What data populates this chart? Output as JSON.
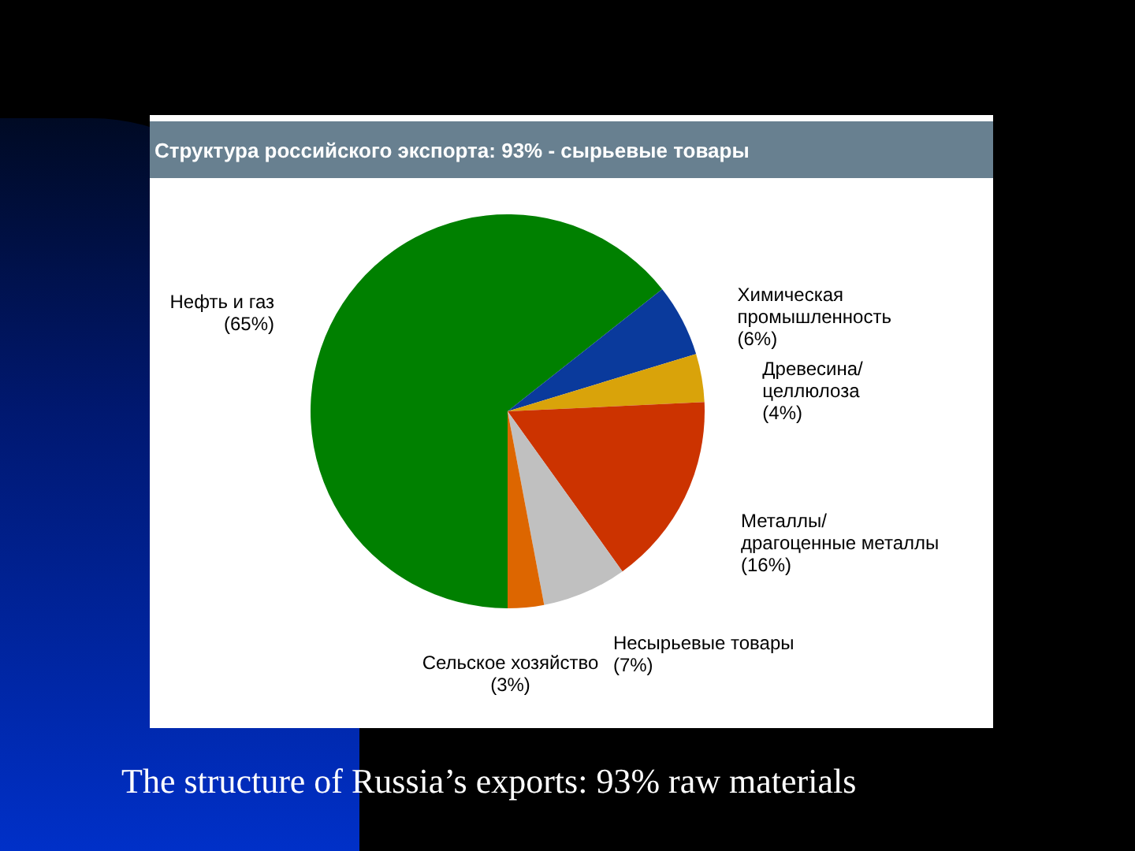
{
  "chart_data": {
    "type": "pie",
    "title": "Структура российского экспорта: 93% - сырьевые товары",
    "categories": [
      "Нефть и газ",
      "Химическая промышленность",
      "Древесина/ целлюлоза",
      "Металлы/ драгоценные металлы",
      "Несырьевые товары",
      "Сельское хозяйство"
    ],
    "values": [
      65,
      6,
      4,
      16,
      7,
      3
    ],
    "colors": [
      "#008000",
      "#0a3a9c",
      "#d9a30a",
      "#cc3300",
      "#c0c0c0",
      "#dd6600"
    ],
    "value_labels": [
      "(65%)",
      "(6%)",
      "(4%)",
      "(16%)",
      "(7%)",
      "(3%)"
    ],
    "annotations": [
      "The structure of Russia’s exports: 93% raw materials"
    ]
  }
}
